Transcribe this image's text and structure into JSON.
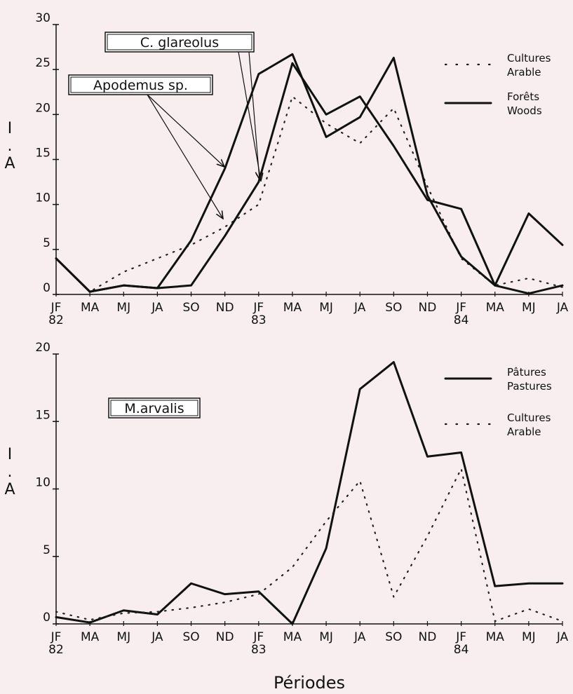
{
  "chart_data": [
    {
      "type": "line",
      "categories": [
        "JF\n82",
        "MA",
        "MJ",
        "JA",
        "SO",
        "ND",
        "JF\n83",
        "MA",
        "MJ",
        "JA",
        "SO",
        "ND",
        "JF\n84",
        "MA",
        "MJ",
        "JA"
      ],
      "ylabel": "I\n.\nA",
      "ylim": [
        0,
        30
      ],
      "yticks": [
        0,
        5,
        10,
        15,
        20,
        25,
        30
      ],
      "series": [
        {
          "style": "dotted",
          "color": "#222222",
          "values": [
            4,
            0.3,
            2.5,
            4,
            5.5,
            7.5,
            10,
            22,
            19,
            16.8,
            20.7,
            12,
            4,
            1,
            1.8,
            0.8
          ]
        },
        {
          "style": "solid",
          "color": "#111111",
          "values": [
            4,
            0.3,
            1,
            0.7,
            6,
            14,
            24.5,
            26.7,
            17.5,
            19.7,
            26.3,
            11,
            4.2,
            1,
            0.1,
            1
          ]
        },
        {
          "style": "solid",
          "color": "#111111",
          "values": [
            4,
            0.3,
            1,
            0.7,
            1,
            6.5,
            12.5,
            25.7,
            20,
            22,
            16.5,
            10.5,
            9.5,
            1,
            9,
            5.5
          ]
        }
      ],
      "legend": [
        {
          "label": "Cultures\nArable",
          "style": "dotted"
        },
        {
          "label": "Forêts\nWoods",
          "style": "solid"
        }
      ],
      "annotations": [
        "C. glareolus",
        "Apodemus sp."
      ]
    },
    {
      "type": "line",
      "categories": [
        "JF\n82",
        "MA",
        "MJ",
        "JA",
        "SO",
        "ND",
        "JF\n83",
        "MA",
        "MJ",
        "JA",
        "SO",
        "ND",
        "JF\n84",
        "MA",
        "MJ",
        "JA"
      ],
      "ylabel": "I\n.\nA",
      "xlabel": "Périodes",
      "ylim": [
        0,
        20
      ],
      "yticks": [
        0,
        5,
        10,
        15,
        20
      ],
      "series": [
        {
          "style": "solid",
          "color": "#111111",
          "values": [
            0.5,
            0.1,
            1,
            0.7,
            3,
            2.2,
            2.4,
            0,
            5.6,
            17.4,
            19.4,
            12.4,
            12.7,
            2.8,
            3,
            3
          ]
        },
        {
          "style": "dotted",
          "color": "#222222",
          "values": [
            0.9,
            0.3,
            0.8,
            0.9,
            1.2,
            1.6,
            2.2,
            4.2,
            7.6,
            10.6,
            2,
            6.5,
            11.5,
            0.2,
            1.1,
            0.2
          ]
        }
      ],
      "legend": [
        {
          "label": "Pâtures\nPastures",
          "style": "solid"
        },
        {
          "label": "Cultures\nArable",
          "style": "dotted"
        }
      ],
      "annotations": [
        "M.arvalis"
      ]
    }
  ]
}
